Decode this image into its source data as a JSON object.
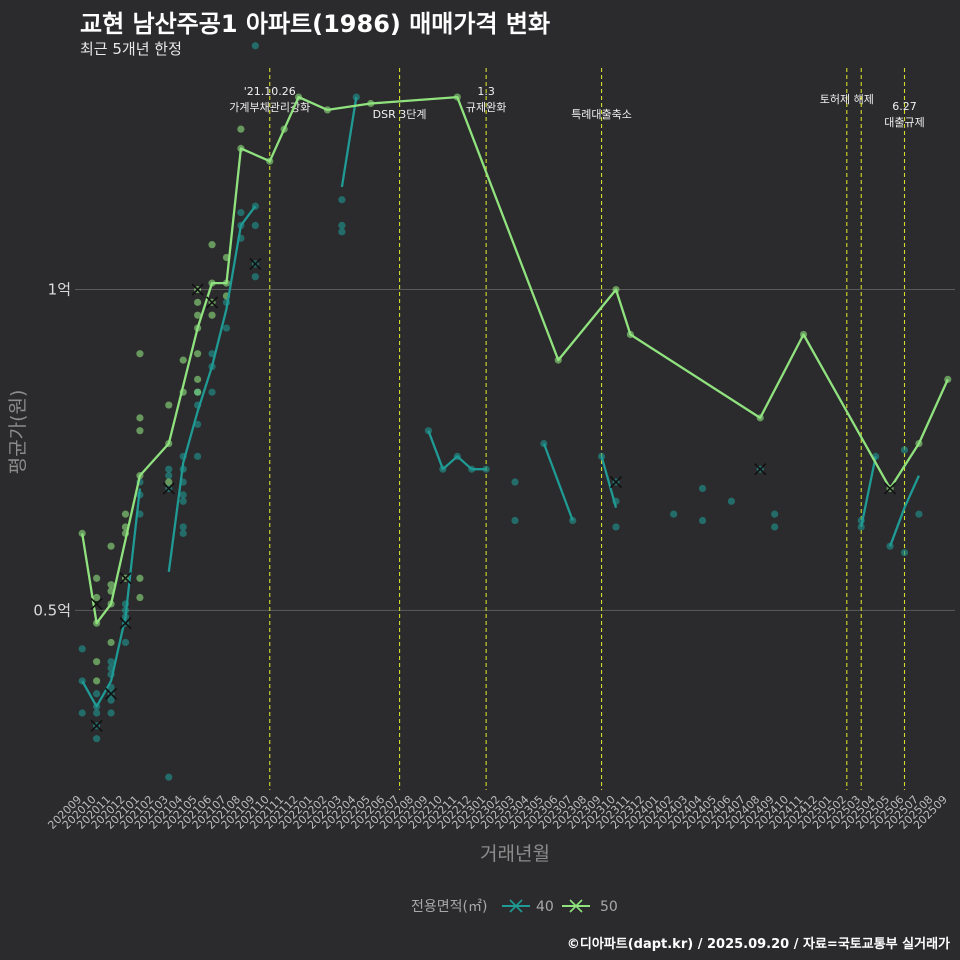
{
  "header": {
    "title": "교현 남산주공1 아파트(1986) 매매가격 변화",
    "subtitle": "최근 5개년 한정"
  },
  "footer": {
    "caption": "©디아파트(dapt.kr) / 2025.09.20 / 자료=국토교통부 실거래가"
  },
  "colors": {
    "background": "#2b2a2c",
    "s40": "#1f9a94",
    "s50": "#90e27f",
    "event_line": "#d4dc2c",
    "grid": "#5a5a5a"
  },
  "chart_data": {
    "type": "line",
    "title": "교현 남산주공1 아파트(1986) 매매가격 변화",
    "subtitle": "최근 5개년 한정",
    "xlabel": "거래년월",
    "ylabel": "평균가(원)",
    "ylim": [
      0.22,
      1.35
    ],
    "yticks": [
      {
        "value": 0.5,
        "label": "0.5억"
      },
      {
        "value": 1.0,
        "label": "1억"
      }
    ],
    "categories": [
      "202009",
      "202010",
      "202011",
      "202012",
      "202101",
      "202102",
      "202103",
      "202104",
      "202105",
      "202106",
      "202107",
      "202108",
      "202109",
      "202110",
      "202111",
      "202112",
      "202201",
      "202202",
      "202203",
      "202204",
      "202205",
      "202206",
      "202207",
      "202208",
      "202209",
      "202210",
      "202211",
      "202212",
      "202301",
      "202302",
      "202303",
      "202304",
      "202305",
      "202306",
      "202307",
      "202308",
      "202309",
      "202310",
      "202311",
      "202312",
      "202401",
      "202402",
      "202403",
      "202404",
      "202405",
      "202406",
      "202407",
      "202408",
      "202409",
      "202410",
      "202411",
      "202412",
      "202501",
      "202502",
      "202503",
      "202504",
      "202505",
      "202506",
      "202507",
      "202508",
      "202509"
    ],
    "legend": {
      "title": "전용면적(㎡)",
      "entries": [
        "40",
        "50"
      ],
      "position": "bottom"
    },
    "series": [
      {
        "name": "40",
        "color_key": "s40",
        "lines": [
          [
            [
              0,
              0.39
            ],
            [
              1,
              0.35
            ],
            [
              2,
              0.39
            ],
            [
              3,
              0.49
            ],
            [
              4,
              0.69
            ]
          ],
          [
            [
              6,
              0.56
            ],
            [
              7,
              0.73
            ],
            [
              8,
              0.81
            ],
            [
              9,
              0.88
            ],
            [
              10,
              0.97
            ],
            [
              11,
              1.1
            ],
            [
              12,
              1.13
            ]
          ],
          [
            [
              18,
              1.16
            ],
            [
              19,
              1.3
            ]
          ],
          [
            [
              24,
              0.78
            ],
            [
              25,
              0.72
            ],
            [
              26,
              0.74
            ],
            [
              27,
              0.72
            ],
            [
              28,
              0.72
            ]
          ],
          [
            [
              32,
              0.76
            ],
            [
              34,
              0.64
            ]
          ],
          [
            [
              36,
              0.74
            ],
            [
              37,
              0.66
            ]
          ],
          [
            [
              54,
              0.63
            ],
            [
              55,
              0.74
            ]
          ],
          [
            [
              56,
              0.6
            ],
            [
              57,
              0.66
            ],
            [
              58,
              0.71
            ]
          ]
        ],
        "points": [
          [
            0,
            0.44
          ],
          [
            0,
            0.39
          ],
          [
            0,
            0.34
          ],
          [
            1,
            0.37
          ],
          [
            1,
            0.35
          ],
          [
            1,
            0.34
          ],
          [
            1,
            0.32
          ],
          [
            1,
            0.3
          ],
          [
            2,
            0.42
          ],
          [
            2,
            0.41
          ],
          [
            2,
            0.4
          ],
          [
            2,
            0.38
          ],
          [
            2,
            0.37
          ],
          [
            2,
            0.36
          ],
          [
            2,
            0.34
          ],
          [
            3,
            0.51
          ],
          [
            3,
            0.5
          ],
          [
            3,
            0.49
          ],
          [
            3,
            0.48
          ],
          [
            3,
            0.45
          ],
          [
            4,
            0.7
          ],
          [
            4,
            0.68
          ],
          [
            4,
            0.65
          ],
          [
            6,
            0.72
          ],
          [
            6,
            0.71
          ],
          [
            6,
            0.69
          ],
          [
            6,
            0.24
          ],
          [
            7,
            0.74
          ],
          [
            7,
            0.72
          ],
          [
            7,
            0.7
          ],
          [
            7,
            0.68
          ],
          [
            7,
            0.67
          ],
          [
            7,
            0.63
          ],
          [
            7,
            0.62
          ],
          [
            8,
            0.84
          ],
          [
            8,
            0.82
          ],
          [
            8,
            0.79
          ],
          [
            8,
            0.74
          ],
          [
            9,
            0.9
          ],
          [
            9,
            0.88
          ],
          [
            9,
            0.84
          ],
          [
            10,
            0.94
          ],
          [
            10,
            0.98
          ],
          [
            11,
            1.12
          ],
          [
            11,
            1.08
          ],
          [
            11,
            1.1
          ],
          [
            12,
            1.13
          ],
          [
            12,
            1.1
          ],
          [
            12,
            1.04
          ],
          [
            12,
            1.02
          ],
          [
            12,
            1.38
          ],
          [
            18,
            1.14
          ],
          [
            18,
            1.09
          ],
          [
            18,
            1.1
          ],
          [
            19,
            1.3
          ],
          [
            24,
            0.78
          ],
          [
            25,
            0.72
          ],
          [
            26,
            0.74
          ],
          [
            27,
            0.72
          ],
          [
            28,
            0.72
          ],
          [
            30,
            0.7
          ],
          [
            30,
            0.64
          ],
          [
            32,
            0.76
          ],
          [
            34,
            0.64
          ],
          [
            36,
            0.74
          ],
          [
            37,
            0.7
          ],
          [
            37,
            0.67
          ],
          [
            37,
            0.63
          ],
          [
            41,
            0.65
          ],
          [
            43,
            0.69
          ],
          [
            43,
            0.64
          ],
          [
            45,
            0.67
          ],
          [
            47,
            0.72
          ],
          [
            48,
            0.65
          ],
          [
            48,
            0.63
          ],
          [
            54,
            0.63
          ],
          [
            54,
            0.64
          ],
          [
            55,
            0.74
          ],
          [
            56,
            0.6
          ],
          [
            57,
            0.59
          ],
          [
            57,
            0.75
          ],
          [
            58,
            0.65
          ]
        ],
        "crosses": [
          [
            1,
            0.32
          ],
          [
            2,
            0.37
          ],
          [
            3,
            0.48
          ],
          [
            6,
            0.69
          ],
          [
            12,
            1.04
          ],
          [
            37,
            0.7
          ],
          [
            47,
            0.72
          ]
        ]
      },
      {
        "name": "50",
        "color_key": "s50",
        "lines": [
          [
            [
              0,
              0.62
            ],
            [
              1,
              0.48
            ],
            [
              2,
              0.51
            ],
            [
              3,
              0.61
            ],
            [
              4,
              0.71
            ],
            [
              6,
              0.76
            ],
            [
              8,
              0.94
            ],
            [
              9,
              1.01
            ],
            [
              10,
              1.01
            ],
            [
              11,
              1.22
            ],
            [
              13,
              1.2
            ],
            [
              14,
              1.25
            ],
            [
              15,
              1.3
            ],
            [
              17,
              1.28
            ],
            [
              20,
              1.29
            ],
            [
              26,
              1.3
            ],
            [
              33,
              0.89
            ],
            [
              37,
              1.0
            ],
            [
              38,
              0.93
            ],
            [
              47,
              0.8
            ],
            [
              50,
              0.93
            ],
            [
              56,
              0.69
            ],
            [
              58,
              0.76
            ],
            [
              60,
              0.86
            ]
          ]
        ],
        "points": [
          [
            0,
            0.62
          ],
          [
            1,
            0.55
          ],
          [
            1,
            0.52
          ],
          [
            1,
            0.48
          ],
          [
            1,
            0.42
          ],
          [
            1,
            0.39
          ],
          [
            2,
            0.6
          ],
          [
            2,
            0.54
          ],
          [
            2,
            0.53
          ],
          [
            2,
            0.51
          ],
          [
            2,
            0.45
          ],
          [
            3,
            0.65
          ],
          [
            3,
            0.63
          ],
          [
            3,
            0.62
          ],
          [
            3,
            0.55
          ],
          [
            4,
            0.9
          ],
          [
            4,
            0.8
          ],
          [
            4,
            0.78
          ],
          [
            4,
            0.71
          ],
          [
            4,
            0.55
          ],
          [
            4,
            0.52
          ],
          [
            6,
            0.82
          ],
          [
            6,
            0.76
          ],
          [
            6,
            0.7
          ],
          [
            7,
            0.89
          ],
          [
            7,
            0.84
          ],
          [
            8,
            1.0
          ],
          [
            8,
            0.98
          ],
          [
            8,
            0.96
          ],
          [
            8,
            0.94
          ],
          [
            8,
            0.9
          ],
          [
            8,
            0.86
          ],
          [
            8,
            0.84
          ],
          [
            9,
            1.07
          ],
          [
            9,
            1.01
          ],
          [
            9,
            0.98
          ],
          [
            9,
            0.96
          ],
          [
            10,
            1.01
          ],
          [
            10,
            1.05
          ],
          [
            10,
            0.99
          ],
          [
            11,
            1.22
          ],
          [
            11,
            1.25
          ],
          [
            13,
            1.2
          ],
          [
            14,
            1.25
          ],
          [
            15,
            1.3
          ],
          [
            17,
            1.28
          ],
          [
            20,
            1.29
          ],
          [
            26,
            1.3
          ],
          [
            33,
            0.89
          ],
          [
            37,
            1.0
          ],
          [
            38,
            0.93
          ],
          [
            47,
            0.8
          ],
          [
            50,
            0.93
          ],
          [
            56,
            0.69
          ],
          [
            58,
            0.76
          ],
          [
            60,
            0.86
          ]
        ],
        "crosses": [
          [
            1,
            0.51
          ],
          [
            3,
            0.55
          ],
          [
            8,
            1.0
          ],
          [
            9,
            0.98
          ],
          [
            56,
            0.69
          ]
        ]
      }
    ],
    "events": [
      {
        "index": 13,
        "lines": [
          "'21.10.26",
          "가계부채관리강화"
        ]
      },
      {
        "index": 22,
        "lines": [
          "DSR 3단계"
        ]
      },
      {
        "index": 28,
        "lines": [
          "1.3",
          "규제완화"
        ]
      },
      {
        "index": 36,
        "lines": [
          "특례대출축소"
        ]
      },
      {
        "index": 53,
        "lines": [
          "토허제 해제"
        ]
      },
      {
        "index": 54,
        "lines": []
      },
      {
        "index": 57,
        "lines": [
          "6.27",
          "대출규제"
        ]
      }
    ]
  }
}
